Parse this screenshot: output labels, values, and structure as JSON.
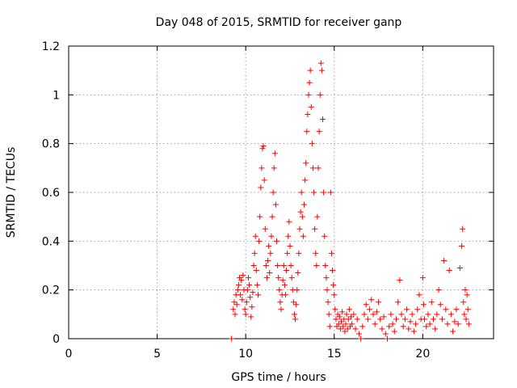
{
  "chart_data": {
    "type": "scatter",
    "title": "Day 048 of 2015, SRMTID for receiver ganp",
    "xlabel": "GPS time / hours",
    "ylabel": "SRMTID / TECUs",
    "xlim": [
      0,
      24
    ],
    "ylim": [
      0,
      1.2
    ],
    "x_ticks": [
      0,
      5,
      10,
      15,
      20
    ],
    "x_tick_labels": [
      "0",
      "5",
      "10",
      "15",
      "20"
    ],
    "y_ticks": [
      0,
      0.2,
      0.4,
      0.6,
      0.8,
      1.0,
      1.2
    ],
    "y_tick_labels": [
      "0",
      "0.2",
      "0.4",
      "0.6",
      "0.8",
      "1",
      "1.2"
    ],
    "grid": true,
    "marker": "plus",
    "series": [
      {
        "name": "SRMTID",
        "color": "#ff0000",
        "points": [
          [
            9.2,
            0.0
          ],
          [
            9.3,
            0.12
          ],
          [
            9.35,
            0.15
          ],
          [
            9.4,
            0.1
          ],
          [
            9.45,
            0.18
          ],
          [
            9.5,
            0.14
          ],
          [
            9.55,
            0.2
          ],
          [
            9.6,
            0.22
          ],
          [
            9.65,
            0.25
          ],
          [
            9.7,
            0.18
          ],
          [
            9.75,
            0.24
          ],
          [
            9.8,
            0.16
          ],
          [
            9.85,
            0.26
          ],
          [
            9.9,
            0.2
          ],
          [
            9.95,
            0.12
          ],
          [
            10.0,
            0.1
          ],
          [
            10.05,
            0.15
          ],
          [
            10.1,
            0.2
          ],
          [
            10.15,
            0.25
          ],
          [
            10.2,
            0.22
          ],
          [
            10.25,
            0.17
          ],
          [
            10.3,
            0.09
          ],
          [
            10.35,
            0.13
          ],
          [
            10.4,
            0.19
          ],
          [
            10.45,
            0.3
          ],
          [
            10.5,
            0.35
          ],
          [
            10.55,
            0.42
          ],
          [
            10.6,
            0.28
          ],
          [
            10.65,
            0.22
          ],
          [
            10.7,
            0.18
          ],
          [
            10.75,
            0.4
          ],
          [
            10.8,
            0.5
          ],
          [
            10.85,
            0.62
          ],
          [
            10.9,
            0.7
          ],
          [
            10.95,
            0.78
          ],
          [
            11.0,
            0.79
          ],
          [
            11.05,
            0.65
          ],
          [
            11.1,
            0.45
          ],
          [
            11.15,
            0.3
          ],
          [
            11.2,
            0.25
          ],
          [
            11.25,
            0.32
          ],
          [
            11.3,
            0.38
          ],
          [
            11.35,
            0.27
          ],
          [
            11.4,
            0.35
          ],
          [
            11.45,
            0.42
          ],
          [
            11.5,
            0.5
          ],
          [
            11.55,
            0.6
          ],
          [
            11.6,
            0.7
          ],
          [
            11.65,
            0.76
          ],
          [
            11.7,
            0.55
          ],
          [
            11.75,
            0.4
          ],
          [
            11.8,
            0.3
          ],
          [
            11.85,
            0.25
          ],
          [
            11.9,
            0.2
          ],
          [
            11.95,
            0.15
          ],
          [
            12.0,
            0.12
          ],
          [
            12.05,
            0.18
          ],
          [
            12.1,
            0.24
          ],
          [
            12.15,
            0.3
          ],
          [
            12.2,
            0.22
          ],
          [
            12.25,
            0.18
          ],
          [
            12.3,
            0.28
          ],
          [
            12.35,
            0.35
          ],
          [
            12.4,
            0.42
          ],
          [
            12.45,
            0.48
          ],
          [
            12.5,
            0.38
          ],
          [
            12.55,
            0.3
          ],
          [
            12.6,
            0.25
          ],
          [
            12.65,
            0.2
          ],
          [
            12.7,
            0.15
          ],
          [
            12.75,
            0.1
          ],
          [
            12.8,
            0.08
          ],
          [
            12.85,
            0.14
          ],
          [
            12.9,
            0.2
          ],
          [
            12.95,
            0.27
          ],
          [
            13.0,
            0.35
          ],
          [
            13.05,
            0.45
          ],
          [
            13.1,
            0.52
          ],
          [
            13.15,
            0.6
          ],
          [
            13.2,
            0.5
          ],
          [
            13.25,
            0.42
          ],
          [
            13.3,
            0.55
          ],
          [
            13.35,
            0.65
          ],
          [
            13.4,
            0.72
          ],
          [
            13.45,
            0.85
          ],
          [
            13.5,
            0.92
          ],
          [
            13.55,
            1.0
          ],
          [
            13.6,
            1.05
          ],
          [
            13.65,
            1.1
          ],
          [
            13.7,
            0.95
          ],
          [
            13.75,
            0.8
          ],
          [
            13.8,
            0.7
          ],
          [
            13.85,
            0.6
          ],
          [
            13.9,
            0.45
          ],
          [
            13.95,
            0.35
          ],
          [
            14.0,
            0.3
          ],
          [
            14.05,
            0.5
          ],
          [
            14.1,
            0.7
          ],
          [
            14.15,
            0.85
          ],
          [
            14.2,
            1.0
          ],
          [
            14.25,
            1.13
          ],
          [
            14.3,
            1.1
          ],
          [
            14.35,
            0.9
          ],
          [
            14.4,
            0.6
          ],
          [
            14.45,
            0.42
          ],
          [
            14.5,
            0.3
          ],
          [
            14.55,
            0.25
          ],
          [
            14.6,
            0.2
          ],
          [
            14.65,
            0.15
          ],
          [
            14.7,
            0.1
          ],
          [
            14.75,
            0.05
          ],
          [
            14.8,
            0.6
          ],
          [
            14.85,
            0.35
          ],
          [
            14.9,
            0.28
          ],
          [
            14.95,
            0.22
          ],
          [
            15.0,
            0.18
          ],
          [
            15.05,
            0.12
          ],
          [
            15.1,
            0.08
          ],
          [
            15.15,
            0.05
          ],
          [
            15.2,
            0.1
          ],
          [
            15.25,
            0.06
          ],
          [
            15.3,
            0.09
          ],
          [
            15.35,
            0.04
          ],
          [
            15.4,
            0.07
          ],
          [
            15.45,
            0.11
          ],
          [
            15.5,
            0.05
          ],
          [
            15.55,
            0.08
          ],
          [
            15.6,
            0.03
          ],
          [
            15.65,
            0.06
          ],
          [
            15.7,
            0.1
          ],
          [
            15.75,
            0.04
          ],
          [
            15.8,
            0.08
          ],
          [
            15.85,
            0.12
          ],
          [
            15.9,
            0.05
          ],
          [
            15.95,
            0.09
          ],
          [
            16.0,
            0.06
          ],
          [
            16.1,
            0.1
          ],
          [
            16.2,
            0.04
          ],
          [
            16.3,
            0.08
          ],
          [
            16.4,
            0.02
          ],
          [
            16.5,
            0.0
          ],
          [
            16.6,
            0.05
          ],
          [
            16.7,
            0.1
          ],
          [
            16.8,
            0.14
          ],
          [
            16.9,
            0.08
          ],
          [
            17.0,
            0.12
          ],
          [
            17.1,
            0.16
          ],
          [
            17.2,
            0.1
          ],
          [
            17.3,
            0.06
          ],
          [
            17.4,
            0.11
          ],
          [
            17.5,
            0.15
          ],
          [
            17.6,
            0.08
          ],
          [
            17.7,
            0.04
          ],
          [
            17.8,
            0.09
          ],
          [
            17.9,
            0.02
          ],
          [
            18.0,
            0.0
          ],
          [
            18.1,
            0.05
          ],
          [
            18.2,
            0.1
          ],
          [
            18.3,
            0.06
          ],
          [
            18.4,
            0.03
          ],
          [
            18.5,
            0.08
          ],
          [
            18.6,
            0.15
          ],
          [
            18.7,
            0.24
          ],
          [
            18.8,
            0.1
          ],
          [
            18.9,
            0.05
          ],
          [
            19.0,
            0.08
          ],
          [
            19.1,
            0.12
          ],
          [
            19.2,
            0.04
          ],
          [
            19.3,
            0.07
          ],
          [
            19.4,
            0.1
          ],
          [
            19.5,
            0.03
          ],
          [
            19.6,
            0.06
          ],
          [
            19.7,
            0.12
          ],
          [
            19.8,
            0.18
          ],
          [
            19.9,
            0.08
          ],
          [
            20.0,
            0.25
          ],
          [
            20.05,
            0.14
          ],
          [
            20.1,
            0.08
          ],
          [
            20.2,
            0.05
          ],
          [
            20.3,
            0.1
          ],
          [
            20.4,
            0.06
          ],
          [
            20.5,
            0.15
          ],
          [
            20.6,
            0.08
          ],
          [
            20.7,
            0.04
          ],
          [
            20.8,
            0.1
          ],
          [
            20.9,
            0.2
          ],
          [
            21.0,
            0.14
          ],
          [
            21.1,
            0.08
          ],
          [
            21.2,
            0.32
          ],
          [
            21.3,
            0.12
          ],
          [
            21.4,
            0.06
          ],
          [
            21.5,
            0.28
          ],
          [
            21.6,
            0.1
          ],
          [
            21.7,
            0.03
          ],
          [
            21.8,
            0.07
          ],
          [
            21.9,
            0.12
          ],
          [
            22.0,
            0.06
          ],
          [
            22.1,
            0.29
          ],
          [
            22.2,
            0.38
          ],
          [
            22.25,
            0.45
          ],
          [
            22.3,
            0.15
          ],
          [
            22.35,
            0.1
          ],
          [
            22.4,
            0.2
          ],
          [
            22.45,
            0.08
          ],
          [
            22.5,
            0.18
          ],
          [
            22.55,
            0.12
          ],
          [
            22.6,
            0.06
          ]
        ]
      }
    ]
  }
}
